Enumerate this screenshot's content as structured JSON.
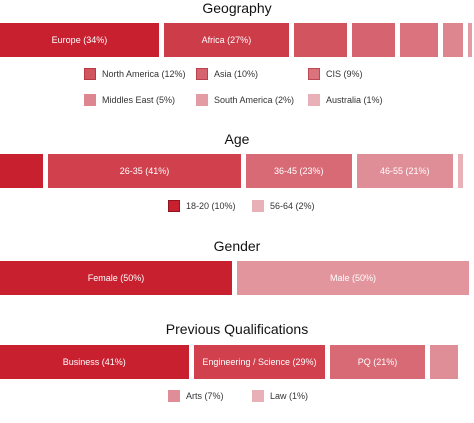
{
  "chart_data": [
    {
      "type": "bar",
      "layout": "stacked-horizontal-100",
      "title": "Geography",
      "categories": [
        "Europe",
        "Africa",
        "North America",
        "Asia",
        "CIS",
        "Middles East",
        "South America",
        "Australia"
      ],
      "values": [
        34,
        27,
        12,
        10,
        9,
        5,
        2,
        1
      ],
      "unit": "%",
      "bar_labels": [
        "Europe (34%)",
        "Africa (27%)",
        "",
        "",
        "",
        "",
        "",
        ""
      ],
      "colors": [
        "#c8202f",
        "#cd3c49",
        "#d2545f",
        "#d66470",
        "#da737d",
        "#de868f",
        "#e39ca4",
        "#e8b1b7"
      ],
      "legend": [
        {
          "label": "North America (12%)",
          "color": "#d2545f"
        },
        {
          "label": "Asia (10%)",
          "color": "#d66470"
        },
        {
          "label": "CIS (9%)",
          "color": "#da737d"
        },
        {
          "label": "Middles East (5%)",
          "color": "#de868f"
        },
        {
          "label": "South America (2%)",
          "color": "#e39ca4"
        },
        {
          "label": "Australia (1%)",
          "color": "#e8b1b7"
        }
      ]
    },
    {
      "type": "bar",
      "layout": "stacked-horizontal-100",
      "title": "Age",
      "categories": [
        "18-20",
        "26-35",
        "36-45",
        "46-55",
        "56-64"
      ],
      "values": [
        10,
        41,
        23,
        21,
        2
      ],
      "unit": "%",
      "bar_labels": [
        "",
        "26-35 (41%)",
        "36-45 (23%)",
        "46-55 (21%)",
        ""
      ],
      "colors": [
        "#c8202f",
        "#d0404d",
        "#d86a75",
        "#df8e97",
        "#e8b1b7"
      ],
      "legend": [
        {
          "label": "18-20 (10%)",
          "color": "#c8202f"
        },
        {
          "label": "56-64 (2%)",
          "color": "#e8b1b7"
        }
      ]
    },
    {
      "type": "bar",
      "layout": "stacked-horizontal-100",
      "title": "Gender",
      "categories": [
        "Female",
        "Male"
      ],
      "values": [
        50,
        50
      ],
      "unit": "%",
      "bar_labels": [
        "Female (50%)",
        "Male (50%)"
      ],
      "colors": [
        "#c8202f",
        "#e3959d"
      ],
      "legend": []
    },
    {
      "type": "bar",
      "layout": "stacked-horizontal-100",
      "title": "Previous Qualifications",
      "categories": [
        "Business",
        "Engineering / Science",
        "PQ",
        "Arts",
        "Law"
      ],
      "values": [
        41,
        29,
        21,
        7,
        1
      ],
      "unit": "%",
      "bar_labels": [
        "Business (41%)",
        "Engineering / Science (29%)",
        "PQ (21%)",
        "",
        ""
      ],
      "colors": [
        "#c8202f",
        "#d0404d",
        "#d86a75",
        "#df8e97",
        "#e8b1b7"
      ],
      "legend": [
        {
          "label": "Arts (7%)",
          "color": "#df8e97"
        },
        {
          "label": "Law (1%)",
          "color": "#e8b1b7"
        }
      ]
    }
  ]
}
